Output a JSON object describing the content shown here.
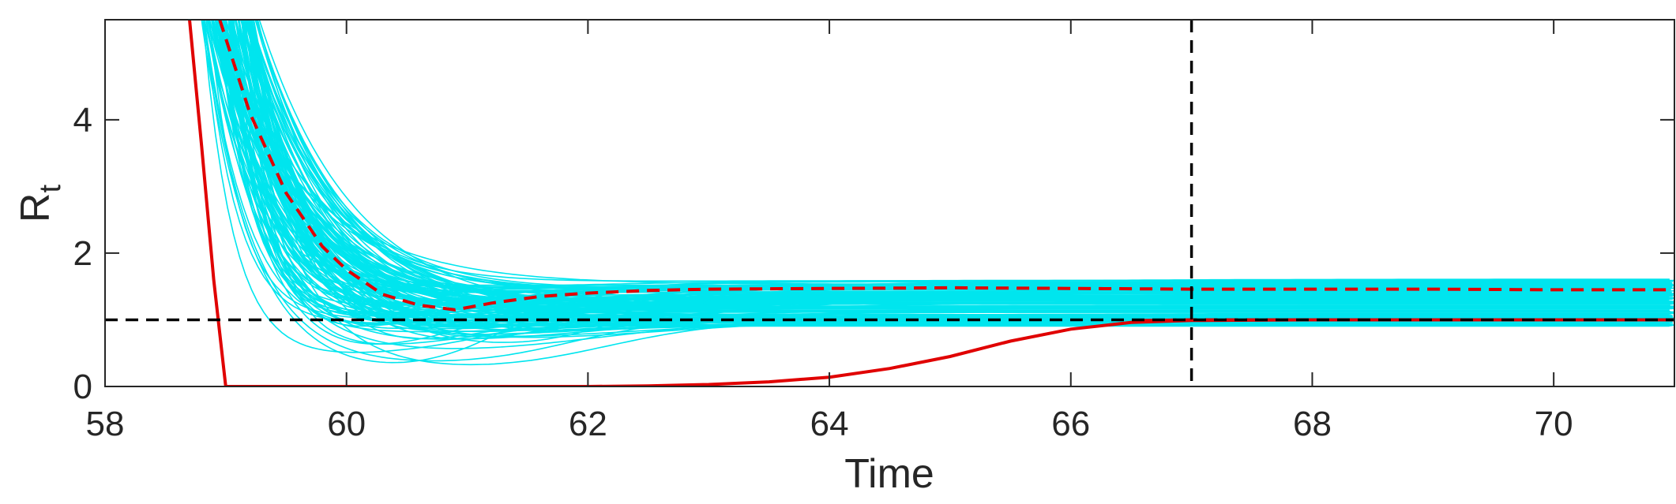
{
  "chart_data": {
    "type": "line",
    "title": "",
    "xlabel": "Time",
    "ylabel_main": "R",
    "ylabel_sub": "t",
    "xlim": [
      58,
      71
    ],
    "ylim": [
      0,
      5.5
    ],
    "xticks": [
      58,
      60,
      62,
      64,
      66,
      68,
      70
    ],
    "yticks": [
      0,
      2,
      4
    ],
    "grid": false,
    "legend": "none",
    "reference_lines": {
      "horizontal_y": 1,
      "vertical_x": 67
    },
    "ensemble": {
      "color": "#00E5EE",
      "count": 150,
      "description_values": {
        "start_x": 58.7,
        "final_min": 0.9,
        "final_max": 1.62
      }
    },
    "series": [
      {
        "color": "#E00000",
        "style": "dashed",
        "x": [
          58.95,
          59.2,
          59.5,
          59.8,
          60.0,
          60.3,
          60.6,
          60.9,
          61.2,
          61.6,
          62.0,
          62.5,
          63.0,
          64.0,
          65.0,
          66.0,
          67.0,
          68.0,
          69.0,
          70.0,
          71.0
        ],
        "y": [
          5.5,
          4.1,
          2.9,
          2.1,
          1.75,
          1.38,
          1.22,
          1.15,
          1.25,
          1.35,
          1.4,
          1.44,
          1.46,
          1.47,
          1.48,
          1.47,
          1.46,
          1.46,
          1.46,
          1.45,
          1.45
        ]
      },
      {
        "color": "#E00000",
        "style": "dashed",
        "x": [
          66.6,
          67.0,
          68.0,
          69.0,
          70.0,
          71.0
        ],
        "y": [
          0.99,
          1.0,
          1.0,
          1.0,
          1.0,
          1.0
        ]
      },
      {
        "color": "#E00000",
        "style": "solid",
        "x": [
          58.7,
          58.8,
          58.9,
          58.95,
          59.0,
          60.0,
          61.0,
          62.0,
          62.5,
          63.0,
          63.5,
          64.0,
          64.5,
          65.0,
          65.5,
          66.0,
          66.5,
          67.0,
          68.0,
          69.0,
          70.0,
          71.0
        ],
        "y": [
          5.5,
          3.6,
          1.6,
          0.8,
          0.0,
          0.0,
          0.0,
          0.0,
          0.01,
          0.03,
          0.07,
          0.14,
          0.27,
          0.45,
          0.68,
          0.86,
          0.96,
          0.99,
          1.0,
          1.0,
          1.0,
          1.0
        ]
      }
    ]
  }
}
